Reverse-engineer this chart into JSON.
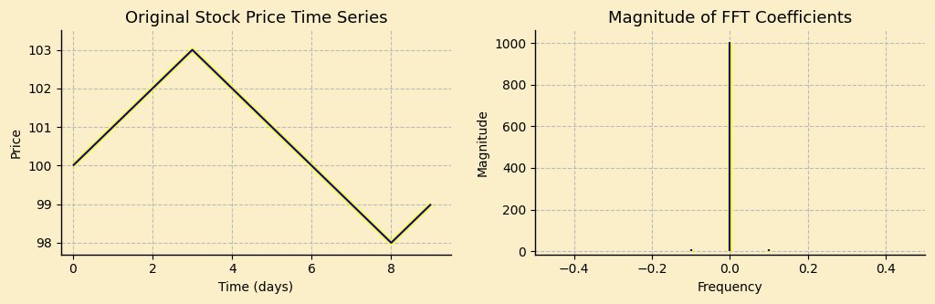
{
  "background_color": "#faefc8",
  "left_title": "Original Stock Price Time Series",
  "right_title": "Magnitude of FFT Coefficients",
  "left_xlabel": "Time (days)",
  "left_ylabel": "Price",
  "right_xlabel": "Frequency",
  "right_ylabel": "Magnitude",
  "stock_x": [
    0,
    1,
    2,
    3,
    4,
    5,
    6,
    7,
    8,
    9
  ],
  "stock_y": [
    100,
    101,
    102,
    103,
    102,
    101,
    100,
    99,
    98,
    99
  ],
  "line_color_blue": "#0000bb",
  "line_color_yellow": "#ffff00",
  "grid_color": "#bbbbbb",
  "grid_style": "--",
  "title_fontsize": 13,
  "label_fontsize": 10,
  "left_xlim": [
    -0.3,
    9.5
  ],
  "left_ylim": [
    97.7,
    103.5
  ],
  "left_xticks": [
    0,
    2,
    4,
    6,
    8
  ],
  "left_yticks": [
    98,
    99,
    100,
    101,
    102,
    103
  ],
  "right_xlim": [
    -0.5,
    0.5
  ],
  "right_ylim": [
    -15,
    1060
  ],
  "right_xticks": [
    -0.4,
    -0.2,
    0.0,
    0.2,
    0.4
  ],
  "right_yticks": [
    0,
    200,
    400,
    600,
    800,
    1000
  ]
}
